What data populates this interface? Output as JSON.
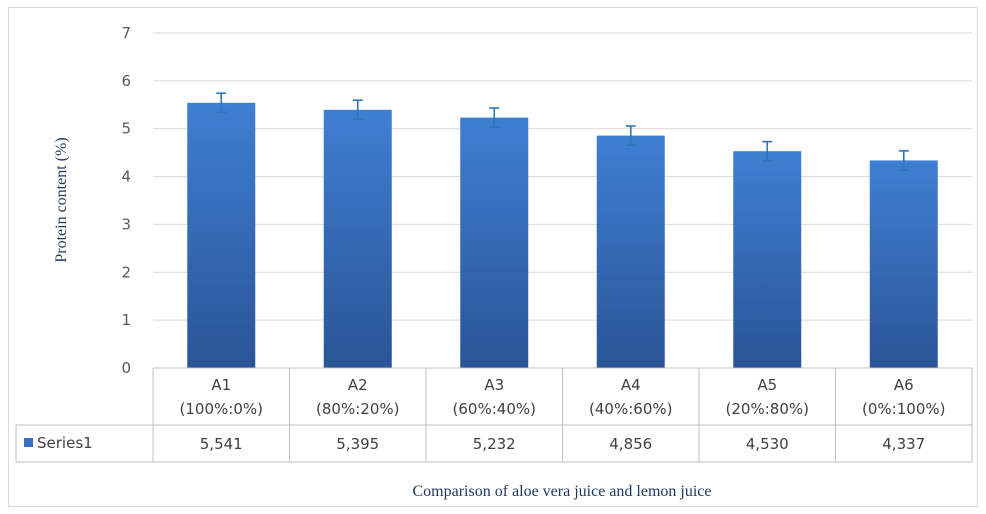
{
  "chart_data": {
    "type": "bar",
    "categories": [
      [
        "A1",
        "(100%:0%)"
      ],
      [
        "A2",
        "(80%:20%)"
      ],
      [
        "A3",
        "(60%:40%)"
      ],
      [
        "A4",
        "(40%:60%)"
      ],
      [
        "A5",
        "(20%:80%)"
      ],
      [
        "A6",
        "(0%:100%)"
      ]
    ],
    "series": [
      {
        "name": "Series1",
        "values": [
          5.541,
          5.395,
          5.232,
          4.856,
          4.53,
          4.337
        ],
        "value_labels": [
          "5,541",
          "5,395",
          "5,232",
          "4,856",
          "4,530",
          "4,337"
        ],
        "error": [
          0.2,
          0.2,
          0.2,
          0.2,
          0.2,
          0.2
        ]
      }
    ],
    "ylim": [
      0,
      7
    ],
    "yticks": [
      "0",
      "1",
      "2",
      "3",
      "4",
      "5",
      "6",
      "7"
    ],
    "ylabel": "Protein content (%)",
    "xlabel": "Comparison of aloe vera juice and lemon juice",
    "grid": true,
    "data_table": true,
    "colors": {
      "bar_top": "#3f7fd3",
      "bar_bottom": "#2a5496",
      "grid": "#d9d9d9",
      "error_bar": "#2e75b6",
      "legend_key": "#3a6fc1"
    }
  }
}
